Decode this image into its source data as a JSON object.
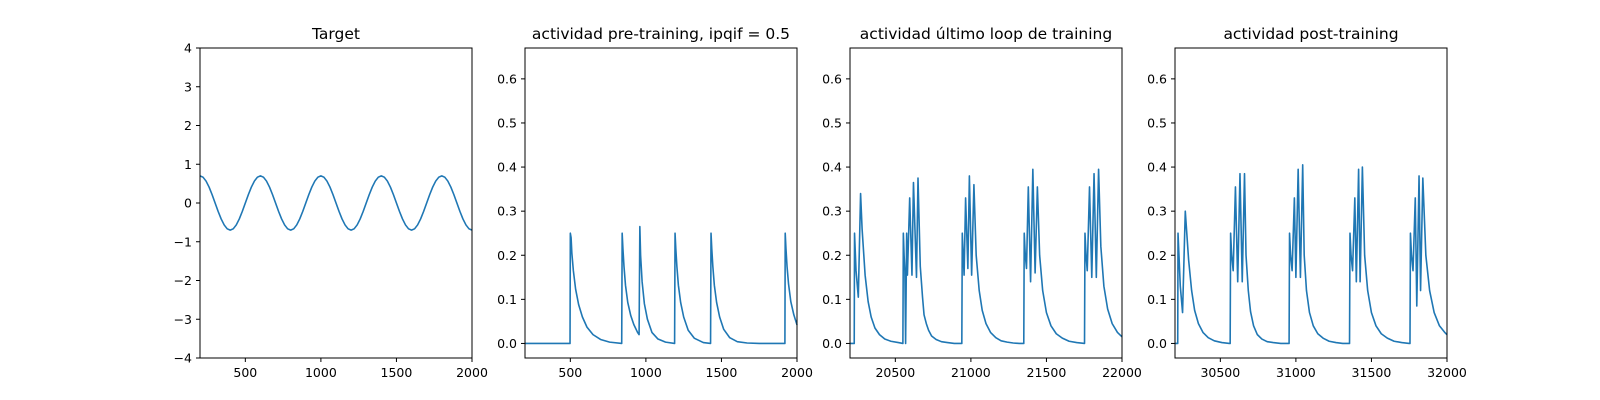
{
  "chart_data": [
    {
      "type": "line",
      "title": "Target",
      "xlabel": "",
      "ylabel": "",
      "xlim": [
        200,
        2000
      ],
      "ylim": [
        -4,
        4
      ],
      "xticks": [
        500,
        1000,
        1500,
        2000
      ],
      "xtick_labels": [
        "500",
        "1000",
        "1500",
        "2000"
      ],
      "yticks": [
        -4,
        -3,
        -2,
        -1,
        0,
        1,
        2,
        3,
        4
      ],
      "ytick_labels": [
        "−4",
        "−3",
        "−2",
        "−1",
        "0",
        "1",
        "2",
        "3",
        "4"
      ],
      "grid": false,
      "color": "#1f77b4",
      "series": [
        {
          "x": [
            200,
            220,
            240,
            260,
            280,
            300,
            320,
            340,
            360,
            380,
            400,
            420,
            440,
            460,
            480,
            500,
            520,
            540,
            560,
            580,
            600,
            620,
            640,
            660,
            680,
            700,
            720,
            740,
            760,
            780,
            800,
            820,
            840,
            860,
            880,
            900,
            920,
            940,
            960,
            980,
            1000,
            1020,
            1040,
            1060,
            1080,
            1100,
            1120,
            1140,
            1160,
            1180,
            1200,
            1220,
            1240,
            1260,
            1280,
            1300,
            1320,
            1340,
            1360,
            1380,
            1400,
            1420,
            1440,
            1460,
            1480,
            1500,
            1520,
            1540,
            1560,
            1580,
            1600,
            1620,
            1640,
            1660,
            1680,
            1700,
            1720,
            1740,
            1760,
            1780,
            1800,
            1820,
            1840,
            1860,
            1880,
            1900,
            1920,
            1940,
            1960,
            1980,
            2000
          ],
          "y": [
            0.7,
            0.666,
            0.566,
            0.411,
            0.216,
            0.0,
            -0.216,
            -0.411,
            -0.566,
            -0.666,
            -0.7,
            -0.666,
            -0.566,
            -0.411,
            -0.216,
            0.0,
            0.216,
            0.411,
            0.566,
            0.666,
            0.7,
            0.666,
            0.566,
            0.411,
            0.216,
            0.0,
            -0.216,
            -0.411,
            -0.566,
            -0.666,
            -0.7,
            -0.666,
            -0.566,
            -0.411,
            -0.216,
            0.0,
            0.216,
            0.411,
            0.566,
            0.666,
            0.7,
            0.666,
            0.566,
            0.411,
            0.216,
            0.0,
            -0.216,
            -0.411,
            -0.566,
            -0.666,
            -0.7,
            -0.666,
            -0.566,
            -0.411,
            -0.216,
            0.0,
            0.216,
            0.411,
            0.566,
            0.666,
            0.7,
            0.666,
            0.566,
            0.411,
            0.216,
            0.0,
            -0.216,
            -0.411,
            -0.566,
            -0.666,
            -0.7,
            -0.666,
            -0.566,
            -0.411,
            -0.216,
            0.0,
            0.216,
            0.411,
            0.566,
            0.666,
            0.7,
            0.666,
            0.566,
            0.411,
            0.216,
            0.0,
            -0.216,
            -0.411,
            -0.566,
            -0.666,
            -0.7
          ]
        }
      ]
    },
    {
      "type": "line",
      "title": "actividad pre-training, ipqif = 0.5",
      "xlabel": "",
      "ylabel": "",
      "xlim": [
        200,
        2000
      ],
      "ylim": [
        -0.033,
        0.67
      ],
      "xticks": [
        500,
        1000,
        1500,
        2000
      ],
      "xtick_labels": [
        "500",
        "1000",
        "1500",
        "2000"
      ],
      "yticks": [
        0.0,
        0.1,
        0.2,
        0.3,
        0.4,
        0.5,
        0.6
      ],
      "ytick_labels": [
        "0.0",
        "0.1",
        "0.2",
        "0.3",
        "0.4",
        "0.5",
        "0.6"
      ],
      "grid": false,
      "color": "#1f77b4",
      "series": [
        {
          "x": [
            200,
            498,
            500,
            505,
            510,
            520,
            535,
            555,
            580,
            610,
            650,
            700,
            760,
            840,
            843,
            848,
            855,
            865,
            880,
            900,
            920,
            945,
            955,
            960,
            965,
            975,
            990,
            1010,
            1040,
            1080,
            1130,
            1190,
            1193,
            1198,
            1205,
            1215,
            1230,
            1250,
            1280,
            1320,
            1380,
            1428,
            1431,
            1436,
            1443,
            1453,
            1468,
            1488,
            1515,
            1555,
            1605,
            1670,
            1750,
            1850,
            1920,
            1922,
            1927,
            1934,
            1944,
            1959,
            1979,
            2000
          ],
          "y": [
            0.0,
            0.0,
            0.25,
            0.24,
            0.205,
            0.165,
            0.123,
            0.088,
            0.06,
            0.037,
            0.02,
            0.009,
            0.003,
            0.0,
            0.25,
            0.215,
            0.175,
            0.132,
            0.093,
            0.063,
            0.043,
            0.025,
            0.02,
            0.265,
            0.2,
            0.14,
            0.09,
            0.055,
            0.025,
            0.01,
            0.003,
            0.0,
            0.25,
            0.215,
            0.175,
            0.132,
            0.093,
            0.06,
            0.03,
            0.012,
            0.002,
            0.0,
            0.25,
            0.215,
            0.175,
            0.132,
            0.093,
            0.06,
            0.032,
            0.013,
            0.004,
            0.001,
            0.0,
            0.0,
            0.0,
            0.25,
            0.215,
            0.175,
            0.135,
            0.095,
            0.065,
            0.042
          ]
        }
      ]
    },
    {
      "type": "line",
      "title": "actividad último loop de training",
      "xlabel": "",
      "ylabel": "",
      "xlim": [
        20200,
        22000
      ],
      "ylim": [
        -0.033,
        0.67
      ],
      "xticks": [
        20500,
        21000,
        21500,
        22000
      ],
      "xtick_labels": [
        "20500",
        "21000",
        "21500",
        "22000"
      ],
      "yticks": [
        0.0,
        0.1,
        0.2,
        0.3,
        0.4,
        0.5,
        0.6
      ],
      "ytick_labels": [
        "0.0",
        "0.1",
        "0.2",
        "0.3",
        "0.4",
        "0.5",
        "0.6"
      ],
      "grid": false,
      "color": "#1f77b4",
      "series": [
        {
          "x": [
            20200,
            20228,
            20230,
            20240,
            20255,
            20270,
            20280,
            20300,
            20320,
            20340,
            20365,
            20395,
            20430,
            20470,
            20520,
            20550,
            20553,
            20558,
            20563,
            20568,
            20575,
            20580,
            20595,
            20610,
            20620,
            20640,
            20650,
            20665,
            20680,
            20690,
            20705,
            20720,
            20740,
            20770,
            20805,
            20845,
            20890,
            20940,
            20943,
            20955,
            20965,
            20980,
            20990,
            21005,
            21020,
            21035,
            21055,
            21075,
            21100,
            21130,
            21165,
            21200,
            21240,
            21280,
            21320,
            21350,
            21353,
            21360,
            21368,
            21380,
            21395,
            21410,
            21425,
            21440,
            21455,
            21475,
            21500,
            21530,
            21565,
            21605,
            21650,
            21700,
            21752,
            21755,
            21762,
            21770,
            21785,
            21800,
            21815,
            21830,
            21845,
            21860,
            21880,
            21905,
            21935,
            21970,
            22000
          ],
          "y": [
            0.0,
            0.0,
            0.25,
            0.165,
            0.105,
            0.34,
            0.26,
            0.155,
            0.095,
            0.06,
            0.035,
            0.02,
            0.01,
            0.005,
            0.002,
            0.0,
            0.25,
            0.2,
            0.165,
            0.0,
            0.25,
            0.155,
            0.33,
            0.155,
            0.365,
            0.15,
            0.375,
            0.175,
            0.105,
            0.065,
            0.045,
            0.03,
            0.017,
            0.009,
            0.004,
            0.002,
            0.0,
            0.0,
            0.25,
            0.155,
            0.33,
            0.17,
            0.38,
            0.155,
            0.36,
            0.2,
            0.12,
            0.075,
            0.045,
            0.025,
            0.013,
            0.006,
            0.003,
            0.001,
            0.0,
            0.0,
            0.25,
            0.2,
            0.17,
            0.355,
            0.14,
            0.395,
            0.16,
            0.355,
            0.2,
            0.12,
            0.07,
            0.04,
            0.022,
            0.012,
            0.005,
            0.002,
            0.0,
            0.25,
            0.2,
            0.165,
            0.355,
            0.15,
            0.385,
            0.15,
            0.395,
            0.22,
            0.13,
            0.078,
            0.045,
            0.025,
            0.015
          ]
        }
      ]
    },
    {
      "type": "line",
      "title": "actividad post-training",
      "xlabel": "",
      "ylabel": "",
      "xlim": [
        30200,
        32000
      ],
      "ylim": [
        -0.033,
        0.67
      ],
      "xticks": [
        30500,
        31000,
        31500,
        32000
      ],
      "xtick_labels": [
        "30500",
        "31000",
        "31500",
        "32000"
      ],
      "yticks": [
        0.0,
        0.1,
        0.2,
        0.3,
        0.4,
        0.5,
        0.6
      ],
      "ytick_labels": [
        "0.0",
        "0.1",
        "0.2",
        "0.3",
        "0.4",
        "0.5",
        "0.6"
      ],
      "grid": false,
      "color": "#1f77b4",
      "series": [
        {
          "x": [
            30200,
            30218,
            30220,
            30235,
            30250,
            30268,
            30290,
            30310,
            30330,
            30355,
            30385,
            30420,
            30460,
            30510,
            30560,
            30565,
            30568,
            30575,
            30585,
            30600,
            30615,
            30630,
            30645,
            30660,
            30670,
            30685,
            30700,
            30720,
            30745,
            30775,
            30810,
            30850,
            30900,
            30940,
            30955,
            30958,
            30965,
            30975,
            30990,
            31000,
            31015,
            31030,
            31045,
            31055,
            31070,
            31090,
            31115,
            31145,
            31180,
            31220,
            31265,
            31310,
            31350,
            31355,
            31358,
            31365,
            31375,
            31390,
            31400,
            31415,
            31425,
            31440,
            31455,
            31475,
            31500,
            31530,
            31565,
            31605,
            31650,
            31700,
            31750,
            31755,
            31758,
            31765,
            31775,
            31790,
            31800,
            31815,
            31825,
            31840,
            31860,
            31885,
            31915,
            31950,
            31985,
            32000
          ],
          "y": [
            0.0,
            0.0,
            0.25,
            0.13,
            0.07,
            0.3,
            0.19,
            0.12,
            0.075,
            0.045,
            0.025,
            0.013,
            0.006,
            0.002,
            0.0,
            0.0,
            0.25,
            0.2,
            0.165,
            0.355,
            0.14,
            0.385,
            0.14,
            0.385,
            0.2,
            0.12,
            0.072,
            0.04,
            0.02,
            0.01,
            0.004,
            0.002,
            0.0,
            0.0,
            0.0,
            0.25,
            0.2,
            0.165,
            0.33,
            0.15,
            0.395,
            0.15,
            0.405,
            0.2,
            0.12,
            0.07,
            0.04,
            0.022,
            0.012,
            0.005,
            0.002,
            0.0,
            0.0,
            0.0,
            0.25,
            0.2,
            0.165,
            0.33,
            0.14,
            0.395,
            0.14,
            0.4,
            0.2,
            0.12,
            0.07,
            0.04,
            0.022,
            0.012,
            0.005,
            0.002,
            0.0,
            0.0,
            0.25,
            0.2,
            0.165,
            0.33,
            0.085,
            0.38,
            0.12,
            0.375,
            0.2,
            0.12,
            0.07,
            0.04,
            0.025,
            0.02
          ]
        }
      ]
    }
  ]
}
